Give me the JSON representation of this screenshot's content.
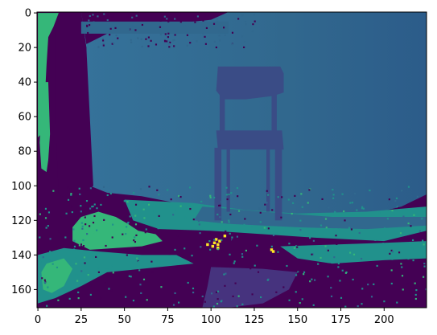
{
  "chart_data": {
    "type": "heatmap",
    "title": "",
    "xlabel": "",
    "ylabel": "",
    "colormap": "viridis",
    "grid": false,
    "colorbar": false,
    "xlim": [
      -0.5,
      224.5
    ],
    "ylim": [
      170.5,
      -0.5
    ],
    "x_ticks": [
      0,
      25,
      50,
      75,
      100,
      125,
      150,
      175,
      200
    ],
    "y_ticks": [
      0,
      20,
      40,
      60,
      80,
      100,
      120,
      140,
      160
    ],
    "colors": {
      "dark": "#440154",
      "blue": "#31688e",
      "blue_light": "#35729a",
      "blue_deep": "#2c5c8a",
      "teal": "#21918c",
      "chair": "#3a4c86",
      "indigo": "#46337e",
      "green": "#35b779",
      "yellow": "#fde725"
    },
    "regions_description": "depth map: dark foreground and left tree trunk, teal-blue wall background with chair silhouette, green patches at lower-left, small yellow speckles near x=100-135, y=130-138"
  }
}
